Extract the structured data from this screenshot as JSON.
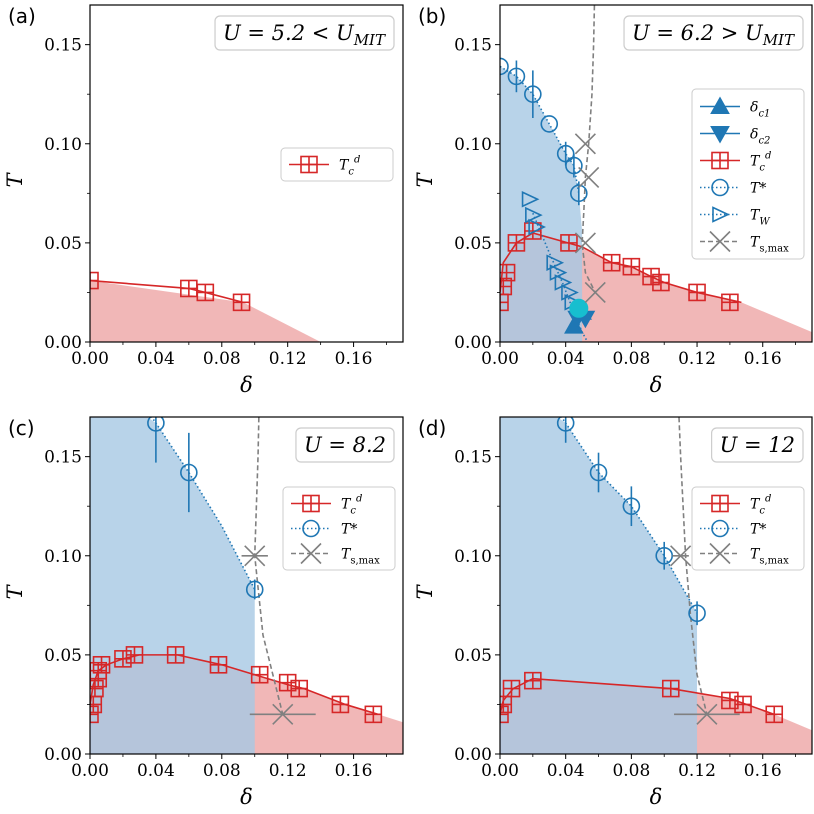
{
  "figure": {
    "x_label": "δ",
    "y_label": "T"
  },
  "chart_data": [
    {
      "tag": "(a)",
      "type": "line",
      "u_label": "U = 5.2 < U_MIT",
      "xlim": [
        0,
        0.19
      ],
      "ylim": [
        0,
        0.17
      ],
      "xticks": [
        "0.00",
        "0.04",
        "0.08",
        "0.12",
        "0.16"
      ],
      "yticks": [
        "0.00",
        "0.05",
        "0.10",
        "0.15"
      ],
      "xlabel": "δ",
      "ylabel": "T",
      "legend": [
        {
          "label": "T_c^d",
          "kind": "tcd"
        }
      ],
      "tcd_line": {
        "x": [
          0.0,
          0.06,
          0.07,
          0.093
        ],
        "y": [
          0.031,
          0.027,
          0.025,
          0.02
        ]
      },
      "tcd_markers": {
        "x": [
          0.0,
          0.06,
          0.07,
          0.092
        ],
        "y": [
          0.031,
          0.027,
          0.025,
          0.02
        ]
      },
      "red_region": {
        "x": [
          0.0,
          0.093,
          0.14
        ],
        "y": [
          0.031,
          0.02,
          0.0
        ]
      }
    },
    {
      "tag": "(b)",
      "type": "line",
      "u_label": "U = 6.2 > U_MIT",
      "xlim": [
        0,
        0.19
      ],
      "ylim": [
        0,
        0.17
      ],
      "xticks": [
        "0.00",
        "0.04",
        "0.08",
        "0.12",
        "0.16"
      ],
      "yticks": [
        "0.00",
        "0.05",
        "0.10",
        "0.15"
      ],
      "xlabel": "δ",
      "ylabel": "T",
      "legend": [
        {
          "label": "δ_c1",
          "kind": "dc1"
        },
        {
          "label": "δ_c2",
          "kind": "dc2"
        },
        {
          "label": "T_c^d",
          "kind": "tcd"
        },
        {
          "label": "T*",
          "kind": "tstar"
        },
        {
          "label": "T_W",
          "kind": "tw"
        },
        {
          "label": "T_s,max",
          "kind": "tsmax"
        }
      ],
      "tcd_line": {
        "x": [
          0.0,
          0.002,
          0.01,
          0.02,
          0.05,
          0.068,
          0.08,
          0.092,
          0.1,
          0.12,
          0.147
        ],
        "y": [
          0.025,
          0.04,
          0.05,
          0.055,
          0.048,
          0.04,
          0.038,
          0.033,
          0.03,
          0.025,
          0.02
        ]
      },
      "tcd_markers": {
        "x": [
          0.0,
          0.002,
          0.004,
          0.01,
          0.02,
          0.042,
          0.068,
          0.08,
          0.092,
          0.098,
          0.12,
          0.14
        ],
        "y": [
          0.02,
          0.028,
          0.035,
          0.05,
          0.056,
          0.05,
          0.04,
          0.038,
          0.033,
          0.03,
          0.025,
          0.02
        ]
      },
      "tstar_line": {
        "x": [
          0.0,
          0.01,
          0.02,
          0.03,
          0.04,
          0.045,
          0.048
        ],
        "y": [
          0.139,
          0.134,
          0.125,
          0.11,
          0.095,
          0.089,
          0.075
        ]
      },
      "tstar_markers": {
        "x": [
          0.0,
          0.01,
          0.02,
          0.03,
          0.04,
          0.045,
          0.048
        ],
        "y": [
          0.139,
          0.134,
          0.125,
          0.11,
          0.095,
          0.089,
          0.075
        ]
      },
      "tstar_err": [
        0.0,
        0.008,
        0.012,
        0.0,
        0.006,
        0.006,
        0.006
      ],
      "blue_region": {
        "x": [
          0.0,
          0.0,
          0.01,
          0.02,
          0.03,
          0.04,
          0.045,
          0.048,
          0.05,
          0.05
        ],
        "y": [
          0.0,
          0.139,
          0.134,
          0.125,
          0.11,
          0.095,
          0.089,
          0.075,
          0.056,
          0.0
        ]
      },
      "red_region": {
        "x": [
          0.0,
          0.002,
          0.01,
          0.02,
          0.05,
          0.068,
          0.08,
          0.092,
          0.1,
          0.12,
          0.147,
          0.19
        ],
        "y": [
          0.025,
          0.04,
          0.05,
          0.055,
          0.048,
          0.04,
          0.038,
          0.033,
          0.03,
          0.025,
          0.02,
          0.005
        ]
      },
      "tw_markers": {
        "x": [
          0.018,
          0.02,
          0.022,
          0.033,
          0.035,
          0.038,
          0.042,
          0.044
        ],
        "y": [
          0.072,
          0.064,
          0.058,
          0.04,
          0.035,
          0.03,
          0.025,
          0.02
        ]
      },
      "tw_line": {
        "x": [
          0.02,
          0.03,
          0.038,
          0.045,
          0.05,
          0.06
        ],
        "y": [
          0.065,
          0.045,
          0.03,
          0.015,
          0.005,
          -0.01
        ]
      },
      "tsmax_line": {
        "x": [
          0.058,
          0.057,
          0.056,
          0.054,
          0.052,
          0.051,
          0.05,
          0.052,
          0.058
        ],
        "y": [
          0.19,
          0.15,
          0.125,
          0.1,
          0.083,
          0.065,
          0.05,
          0.035,
          0.025
        ]
      },
      "tsmax_markers": {
        "x": [
          0.052,
          0.054,
          0.052,
          0.058
        ],
        "y": [
          0.1,
          0.083,
          0.05,
          0.025
        ]
      },
      "dc_markers": {
        "x": [
          0.045,
          0.047,
          0.05,
          0.052
        ],
        "y": [
          0.008,
          0.012,
          0.015,
          0.012
        ]
      },
      "cyan_marker": {
        "x": 0.048,
        "y": 0.017
      }
    },
    {
      "tag": "(c)",
      "type": "line",
      "u_label": "U = 8.2",
      "xlim": [
        0,
        0.19
      ],
      "ylim": [
        0,
        0.17
      ],
      "xticks": [
        "0.00",
        "0.04",
        "0.08",
        "0.12",
        "0.16"
      ],
      "yticks": [
        "0.00",
        "0.05",
        "0.10",
        "0.15"
      ],
      "xlabel": "δ",
      "ylabel": "T",
      "legend": [
        {
          "label": "T_c^d",
          "kind": "tcd"
        },
        {
          "label": "T*",
          "kind": "tstar"
        },
        {
          "label": "T_s,max",
          "kind": "tsmax"
        }
      ],
      "tcd_line": {
        "x": [
          0.0,
          0.002,
          0.005,
          0.01,
          0.02,
          0.03,
          0.053,
          0.08,
          0.1,
          0.12,
          0.13,
          0.155,
          0.175
        ],
        "y": [
          0.025,
          0.035,
          0.042,
          0.045,
          0.048,
          0.05,
          0.05,
          0.045,
          0.04,
          0.035,
          0.033,
          0.025,
          0.02
        ]
      },
      "tcd_markers": {
        "x": [
          0.0,
          0.002,
          0.003,
          0.005,
          0.005,
          0.007,
          0.02,
          0.027,
          0.052,
          0.078,
          0.103,
          0.12,
          0.127,
          0.152,
          0.172
        ],
        "y": [
          0.02,
          0.025,
          0.033,
          0.038,
          0.042,
          0.045,
          0.048,
          0.05,
          0.05,
          0.045,
          0.04,
          0.036,
          0.033,
          0.025,
          0.02
        ]
      },
      "tstar_line": {
        "x": [
          0.02,
          0.04,
          0.06,
          0.08,
          0.1
        ],
        "y": [
          0.19,
          0.167,
          0.142,
          0.115,
          0.083
        ]
      },
      "tstar_markers": {
        "x": [
          0.04,
          0.06,
          0.1
        ],
        "y": [
          0.167,
          0.142,
          0.083
        ]
      },
      "tstar_err": [
        0.02,
        0.02,
        0.005
      ],
      "blue_region": {
        "x": [
          0.0,
          0.0,
          0.04,
          0.06,
          0.08,
          0.1,
          0.1
        ],
        "y": [
          0.0,
          0.19,
          0.167,
          0.142,
          0.115,
          0.083,
          0.0
        ]
      },
      "red_region": {
        "x": [
          0.0,
          0.002,
          0.005,
          0.01,
          0.02,
          0.03,
          0.053,
          0.08,
          0.1,
          0.12,
          0.13,
          0.155,
          0.175,
          0.19
        ],
        "y": [
          0.025,
          0.035,
          0.042,
          0.045,
          0.048,
          0.05,
          0.05,
          0.045,
          0.04,
          0.035,
          0.033,
          0.025,
          0.02,
          0.016
        ]
      },
      "tsmax_line": {
        "x": [
          0.103,
          0.102,
          0.1,
          0.105,
          0.117
        ],
        "y": [
          0.19,
          0.15,
          0.1,
          0.06,
          0.02
        ]
      },
      "tsmax_markers": {
        "x": [
          0.1,
          0.117
        ],
        "y": [
          0.1,
          0.02
        ]
      },
      "tsmax_xerr": [
        0.008,
        0.02
      ]
    },
    {
      "tag": "(d)",
      "type": "line",
      "u_label": "U = 12",
      "xlim": [
        0,
        0.19
      ],
      "ylim": [
        0,
        0.17
      ],
      "xticks": [
        "0.00",
        "0.04",
        "0.08",
        "0.12",
        "0.16"
      ],
      "yticks": [
        "0.00",
        "0.05",
        "0.10",
        "0.15"
      ],
      "xlabel": "δ",
      "ylabel": "T",
      "legend": [
        {
          "label": "T_c^d",
          "kind": "tcd"
        },
        {
          "label": "T*",
          "kind": "tstar"
        },
        {
          "label": "T_s,max",
          "kind": "tsmax"
        }
      ],
      "tcd_line": {
        "x": [
          0.0,
          0.002,
          0.008,
          0.02,
          0.104,
          0.14,
          0.167
        ],
        "y": [
          0.02,
          0.027,
          0.033,
          0.038,
          0.033,
          0.028,
          0.02
        ]
      },
      "tcd_markers": {
        "x": [
          0.0,
          0.002,
          0.007,
          0.02,
          0.104,
          0.14,
          0.148,
          0.167
        ],
        "y": [
          0.02,
          0.025,
          0.033,
          0.037,
          0.033,
          0.027,
          0.025,
          0.02
        ]
      },
      "tstar_line": {
        "x": [
          0.02,
          0.04,
          0.06,
          0.08,
          0.1,
          0.12
        ],
        "y": [
          0.19,
          0.167,
          0.142,
          0.125,
          0.1,
          0.071
        ]
      },
      "tstar_markers": {
        "x": [
          0.04,
          0.06,
          0.08,
          0.1,
          0.12
        ],
        "y": [
          0.167,
          0.142,
          0.125,
          0.1,
          0.071
        ]
      },
      "tstar_err": [
        0.01,
        0.01,
        0.01,
        0.007,
        0.006
      ],
      "blue_region": {
        "x": [
          0.0,
          0.0,
          0.04,
          0.06,
          0.08,
          0.1,
          0.12,
          0.12
        ],
        "y": [
          0.0,
          0.19,
          0.167,
          0.142,
          0.125,
          0.1,
          0.071,
          0.0
        ]
      },
      "red_region": {
        "x": [
          0.0,
          0.002,
          0.008,
          0.02,
          0.104,
          0.14,
          0.167,
          0.19
        ],
        "y": [
          0.02,
          0.027,
          0.033,
          0.038,
          0.033,
          0.028,
          0.02,
          0.012
        ]
      },
      "tsmax_line": {
        "x": [
          0.108,
          0.11,
          0.113,
          0.116,
          0.12,
          0.126
        ],
        "y": [
          0.19,
          0.15,
          0.1,
          0.07,
          0.04,
          0.02
        ]
      },
      "tsmax_markers": {
        "x": [
          0.11,
          0.126
        ],
        "y": [
          0.1,
          0.02
        ]
      },
      "tsmax_xerr": [
        0.005,
        0.02
      ]
    }
  ],
  "colors": {
    "red_line": "#d62728",
    "red_fill": "#eeaaaa",
    "blue_line": "#1f77b4",
    "blue_fill": "#a6c8e4",
    "grey": "#808080",
    "cyan": "#17becf"
  }
}
